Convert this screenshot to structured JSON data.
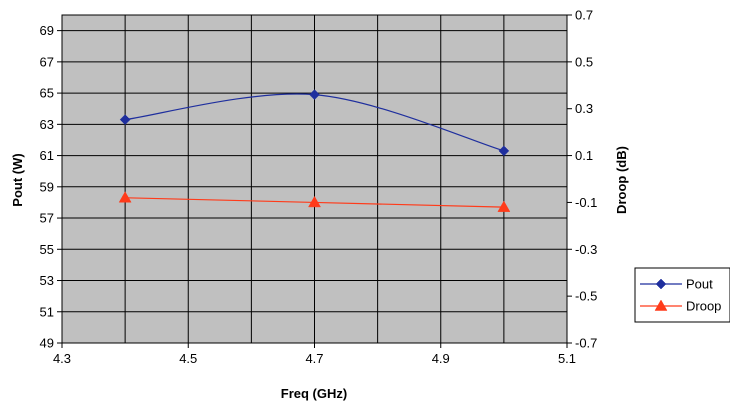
{
  "chart_data": {
    "type": "line",
    "xlabel": "Freq (GHz)",
    "ylabel": "Pout (W)",
    "y2label": "Droop (dB)",
    "xlim": [
      4.3,
      5.1
    ],
    "ylim": [
      49,
      70
    ],
    "y2lim": [
      -0.7,
      0.7
    ],
    "xticks": [
      "4.3",
      "4.5",
      "4.7",
      "4.9",
      "5.1"
    ],
    "yticks": [
      "49",
      "51",
      "53",
      "55",
      "57",
      "59",
      "61",
      "63",
      "65",
      "67",
      "69"
    ],
    "y2ticks": [
      "-0.7",
      "-0.5",
      "-0.3",
      "-0.1",
      "0.1",
      "0.3",
      "0.5",
      "0.7"
    ],
    "grid": true,
    "legend_position": "right",
    "series": [
      {
        "name": "Pout",
        "axis": "left",
        "color": "#1f2f9e",
        "marker": "diamond",
        "smooth": true,
        "x": [
          4.4,
          4.7,
          5.0
        ],
        "values": [
          63.3,
          64.9,
          61.3
        ]
      },
      {
        "name": "Droop",
        "axis": "right",
        "color": "#ff3b1a",
        "marker": "triangle",
        "smooth": false,
        "x": [
          4.4,
          4.7,
          5.0
        ],
        "values": [
          -0.08,
          -0.1,
          -0.12
        ]
      }
    ]
  }
}
